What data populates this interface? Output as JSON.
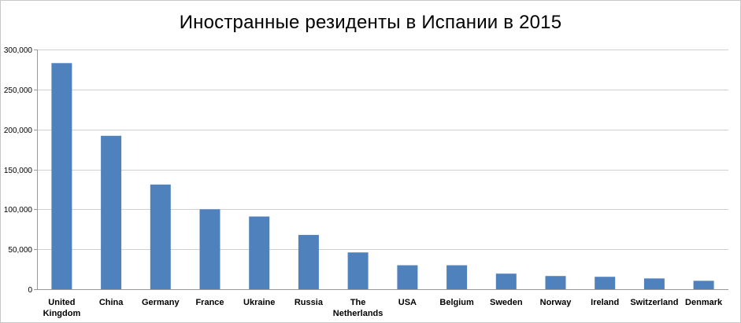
{
  "chart_data": {
    "type": "bar",
    "title": "Иностранные резиденты в Испании в 2015",
    "categories": [
      [
        "United",
        "Kingdom"
      ],
      [
        "China"
      ],
      [
        "Germany"
      ],
      [
        "France"
      ],
      [
        "Ukraine"
      ],
      [
        "Russia"
      ],
      [
        "The",
        "Netherlands"
      ],
      [
        "USA"
      ],
      [
        "Belgium"
      ],
      [
        "Sweden"
      ],
      [
        "Norway"
      ],
      [
        "Ireland"
      ],
      [
        "Switzerland"
      ],
      [
        "Denmark"
      ]
    ],
    "values": [
      283000,
      192000,
      131000,
      100000,
      91000,
      68000,
      46000,
      30000,
      30000,
      19500,
      16500,
      15500,
      13500,
      10500
    ],
    "ylim": [
      0,
      300000
    ],
    "yticks": [
      "0",
      "50,000",
      "100,000",
      "150,000",
      "200,000",
      "250,000",
      "300,000"
    ],
    "ytick_values": [
      0,
      50000,
      100000,
      150000,
      200000,
      250000,
      300000
    ],
    "xlabel": "",
    "ylabel": "",
    "grid": true,
    "legend": "none",
    "bar_color": "#4f81bd",
    "grid_color": "#d0d0d0",
    "axis_color": "#9a9a9a"
  }
}
